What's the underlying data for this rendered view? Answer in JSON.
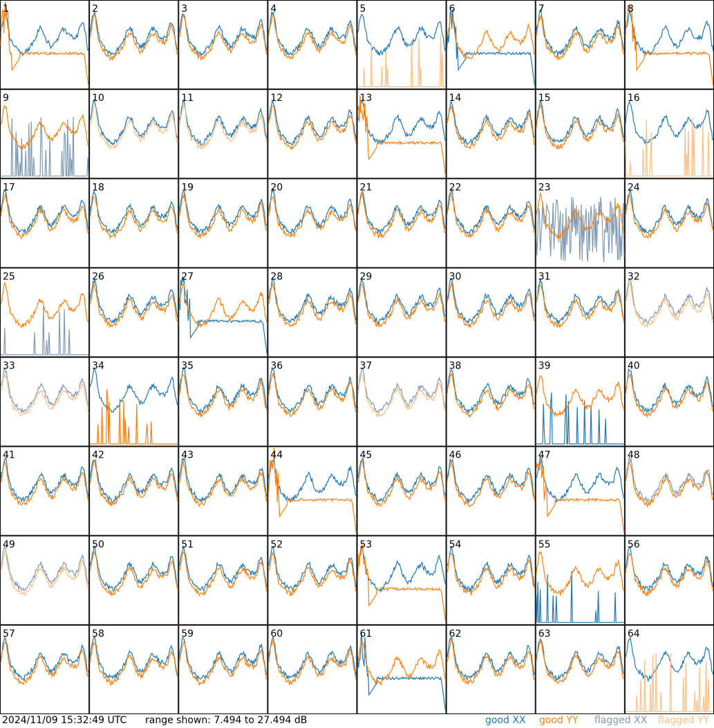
{
  "footer": {
    "timestamp": "2024/11/09 15:32:49 UTC",
    "range": "range shown: 7.494 to 27.494 dB"
  },
  "legend": {
    "good_xx": "good XX",
    "good_yy": "good YY",
    "flagged_xx": "flagged XX",
    "flagged_yy": "flagged YY"
  },
  "colors": {
    "good_xx": "#1f77b4",
    "good_yy": "#ff7f0e",
    "flagged_xx": "#7f99b2",
    "flagged_yy": "#ffbf87"
  },
  "chart_data": {
    "type": "line",
    "grid": "8x8 small multiples",
    "ylim": [
      7.494,
      27.494
    ],
    "yunits": "dB",
    "panels": [
      {
        "label": "1",
        "xx": "good",
        "yy": "good",
        "yy_shape": "drop"
      },
      {
        "label": "2",
        "xx": "good",
        "yy": "good"
      },
      {
        "label": "3",
        "xx": "good",
        "yy": "good"
      },
      {
        "label": "4",
        "xx": "good",
        "yy": "good"
      },
      {
        "label": "5",
        "xx": "good",
        "yy": "flagged",
        "yy_shape": "spikes"
      },
      {
        "label": "6",
        "xx": "good",
        "yy": "good",
        "xx_shape": "drop"
      },
      {
        "label": "7",
        "xx": "good",
        "yy": "good"
      },
      {
        "label": "8",
        "xx": "good",
        "yy": "good",
        "yy_shape": "drop"
      },
      {
        "label": "9",
        "xx": "flagged",
        "yy": "good",
        "xx_shape": "spikes"
      },
      {
        "label": "10",
        "xx": "good",
        "yy": "flagged"
      },
      {
        "label": "11",
        "xx": "good",
        "yy": "flagged"
      },
      {
        "label": "12",
        "xx": "good",
        "yy": "good"
      },
      {
        "label": "13",
        "xx": "good",
        "yy": "good",
        "yy_shape": "drop"
      },
      {
        "label": "14",
        "xx": "good",
        "yy": "good"
      },
      {
        "label": "15",
        "xx": "good",
        "yy": "good"
      },
      {
        "label": "16",
        "xx": "good",
        "yy": "flagged",
        "yy_shape": "spikes"
      },
      {
        "label": "17",
        "xx": "good",
        "yy": "good"
      },
      {
        "label": "18",
        "xx": "good",
        "yy": "good"
      },
      {
        "label": "19",
        "xx": "good",
        "yy": "good"
      },
      {
        "label": "20",
        "xx": "good",
        "yy": "good"
      },
      {
        "label": "21",
        "xx": "good",
        "yy": "good"
      },
      {
        "label": "22",
        "xx": "good",
        "yy": "good"
      },
      {
        "label": "23",
        "xx": "flagged",
        "yy": "good",
        "xx_shape": "noise"
      },
      {
        "label": "24",
        "xx": "good",
        "yy": "good"
      },
      {
        "label": "25",
        "xx": "flagged",
        "yy": "good",
        "xx_shape": "spikes"
      },
      {
        "label": "26",
        "xx": "good",
        "yy": "good"
      },
      {
        "label": "27",
        "xx": "good",
        "yy": "good",
        "xx_shape": "drop"
      },
      {
        "label": "28",
        "xx": "good",
        "yy": "good"
      },
      {
        "label": "29",
        "xx": "good",
        "yy": "good"
      },
      {
        "label": "30",
        "xx": "good",
        "yy": "good"
      },
      {
        "label": "31",
        "xx": "good",
        "yy": "good"
      },
      {
        "label": "32",
        "xx": "flagged",
        "yy": "flagged"
      },
      {
        "label": "33",
        "xx": "flagged",
        "yy": "flagged"
      },
      {
        "label": "34",
        "xx": "good",
        "yy": "good",
        "yy_shape": "spikes"
      },
      {
        "label": "35",
        "xx": "good",
        "yy": "good"
      },
      {
        "label": "36",
        "xx": "good",
        "yy": "good"
      },
      {
        "label": "37",
        "xx": "flagged",
        "yy": "flagged"
      },
      {
        "label": "38",
        "xx": "good",
        "yy": "good"
      },
      {
        "label": "39",
        "xx": "good",
        "yy": "good",
        "xx_shape": "spikes"
      },
      {
        "label": "40",
        "xx": "good",
        "yy": "good"
      },
      {
        "label": "41",
        "xx": "good",
        "yy": "good"
      },
      {
        "label": "42",
        "xx": "good",
        "yy": "good"
      },
      {
        "label": "43",
        "xx": "good",
        "yy": "good"
      },
      {
        "label": "44",
        "xx": "good",
        "yy": "good",
        "yy_shape": "drop"
      },
      {
        "label": "45",
        "xx": "good",
        "yy": "good"
      },
      {
        "label": "46",
        "xx": "good",
        "yy": "good"
      },
      {
        "label": "47",
        "xx": "good",
        "yy": "good",
        "yy_shape": "drop"
      },
      {
        "label": "48",
        "xx": "flagged",
        "yy": "good"
      },
      {
        "label": "49",
        "xx": "flagged",
        "yy": "flagged"
      },
      {
        "label": "50",
        "xx": "good",
        "yy": "good"
      },
      {
        "label": "51",
        "xx": "good",
        "yy": "good"
      },
      {
        "label": "52",
        "xx": "good",
        "yy": "good"
      },
      {
        "label": "53",
        "xx": "good",
        "yy": "good",
        "yy_shape": "drop"
      },
      {
        "label": "54",
        "xx": "good",
        "yy": "good"
      },
      {
        "label": "55",
        "xx": "good",
        "yy": "good",
        "xx_shape": "spikes"
      },
      {
        "label": "56",
        "xx": "good",
        "yy": "good"
      },
      {
        "label": "57",
        "xx": "good",
        "yy": "good"
      },
      {
        "label": "58",
        "xx": "good",
        "yy": "good"
      },
      {
        "label": "59",
        "xx": "good",
        "yy": "good"
      },
      {
        "label": "60",
        "xx": "good",
        "yy": "good"
      },
      {
        "label": "61",
        "xx": "good",
        "yy": "good",
        "xx_shape": "drop"
      },
      {
        "label": "62",
        "xx": "good",
        "yy": "good"
      },
      {
        "label": "63",
        "xx": "good",
        "yy": "good"
      },
      {
        "label": "64",
        "xx": "good",
        "yy": "flagged",
        "yy_shape": "spikes"
      }
    ]
  }
}
